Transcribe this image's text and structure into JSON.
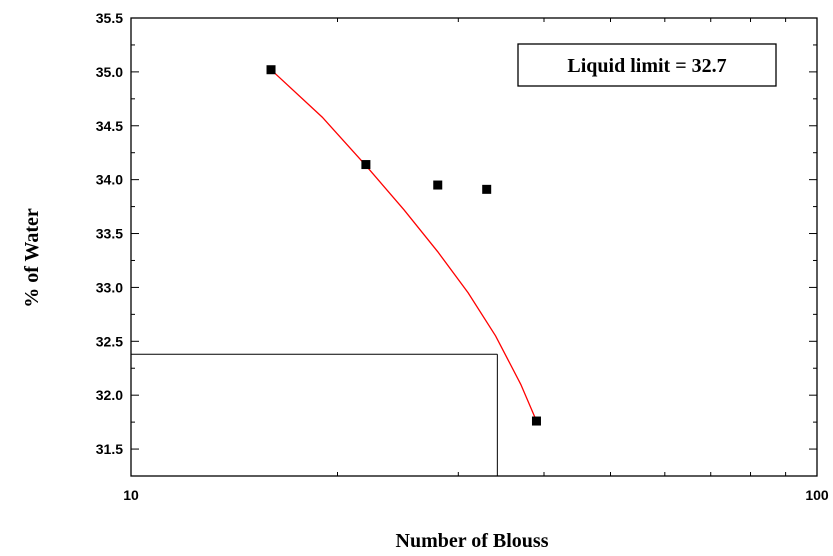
{
  "chart_data": {
    "type": "scatter",
    "xlabel": "Number of Blouss",
    "ylabel": "% of Water",
    "xscale": "log",
    "xlim": [
      10,
      100
    ],
    "ylim": [
      31.25,
      35.5
    ],
    "x_ticks": [
      10,
      100
    ],
    "y_ticks": [
      31.5,
      32.0,
      32.5,
      33.0,
      33.5,
      34.0,
      34.5,
      35.0,
      35.5
    ],
    "grid": false,
    "legend": "none",
    "annotation": "Liquid limit = 32.7",
    "series": [
      {
        "type": "scatter",
        "x": [
          16,
          22,
          28,
          33,
          39
        ],
        "y": [
          35.02,
          34.14,
          33.95,
          33.91,
          31.76
        ],
        "color": "#000000"
      },
      {
        "type": "line",
        "x": [
          16,
          19,
          22,
          25,
          28,
          31,
          34,
          37,
          39
        ],
        "y": [
          35.02,
          34.58,
          34.13,
          33.72,
          33.33,
          32.95,
          32.55,
          32.1,
          31.76
        ],
        "color": "#ff0000"
      }
    ],
    "reference_lines": {
      "x": 34.2,
      "y": 32.38
    }
  }
}
